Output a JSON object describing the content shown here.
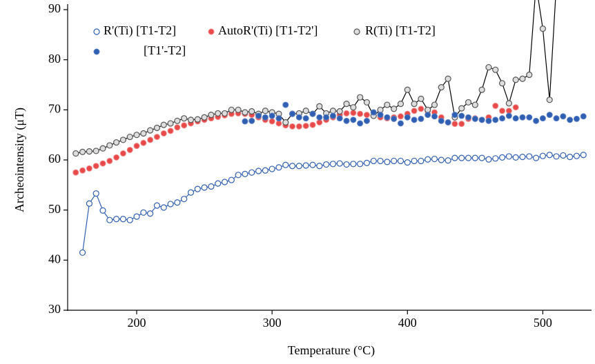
{
  "chart_data": {
    "type": "scatter",
    "x_label": "Temperature (°C)",
    "y_label": "Archeointensity (μT)",
    "xlim": [
      149,
      536
    ],
    "ylim": [
      30,
      90
    ],
    "xticks": [
      200,
      300,
      400,
      500
    ],
    "yticks": [
      30,
      40,
      50,
      60,
      70,
      80,
      90
    ],
    "series": [
      {
        "name": "R'(Ti) [T1-T2]",
        "color": "#2f5fb3",
        "marker": "open",
        "line": true,
        "x": [
          160,
          165,
          170,
          175,
          180,
          185,
          190,
          195,
          200,
          205,
          210,
          215,
          220,
          225,
          230,
          235,
          240,
          245,
          250,
          255,
          260,
          265,
          270,
          275,
          280,
          285,
          290,
          295,
          300,
          305,
          310,
          315,
          320,
          325,
          330,
          335,
          340,
          345,
          350,
          355,
          360,
          365,
          370,
          375,
          380,
          385,
          390,
          395,
          400,
          405,
          410,
          415,
          420,
          425,
          430,
          435,
          440,
          445,
          450,
          455,
          460,
          465,
          470,
          475,
          480,
          485,
          490,
          495,
          500,
          505,
          510,
          515,
          520,
          525,
          530
        ],
        "values": [
          41.5,
          51.3,
          53.3,
          49.9,
          48,
          48.2,
          48.2,
          48,
          48.7,
          49.5,
          49.3,
          50.9,
          50.5,
          51.2,
          51.5,
          52.2,
          53.5,
          54.2,
          54.5,
          54.7,
          55.3,
          55.6,
          56,
          57,
          57.2,
          57.5,
          57.8,
          57.9,
          58.2,
          58.5,
          59,
          58.8,
          58.8,
          58.9,
          59,
          58.8,
          59.1,
          59.2,
          59.3,
          59.1,
          59.2,
          59.2,
          59.4,
          59.8,
          59.8,
          59.6,
          59.8,
          59.8,
          59.5,
          59.8,
          59.8,
          60.1,
          60.2,
          60,
          59.9,
          60.4,
          60.4,
          60.4,
          60.4,
          60.4,
          60.1,
          60.3,
          60.5,
          60.7,
          60.5,
          60.6,
          60.7,
          60.4,
          60.8,
          61,
          60.7,
          60.9,
          60.6,
          60.8,
          61
        ]
      },
      {
        "name": "AutoR'(Ti) [T1-T2']",
        "color": "#e84a4a",
        "marker": "filled",
        "line": false,
        "x": [
          155,
          160,
          165,
          170,
          175,
          180,
          185,
          190,
          195,
          200,
          205,
          210,
          215,
          220,
          225,
          230,
          235,
          240,
          245,
          250,
          255,
          260,
          265,
          270,
          275,
          280,
          285,
          290,
          295,
          300,
          305,
          310,
          315,
          320,
          325,
          330,
          335,
          340,
          345,
          350,
          355,
          360,
          365,
          370,
          375,
          380,
          385,
          390,
          395,
          400,
          405,
          410,
          415,
          420,
          425,
          430,
          435,
          440,
          445,
          450,
          455,
          460,
          465,
          470,
          475,
          480
        ],
        "values": [
          57.5,
          57.9,
          58.3,
          58.8,
          59.3,
          59.8,
          60.5,
          61.3,
          62,
          62.8,
          63.4,
          64,
          64.6,
          65.3,
          65.8,
          66.5,
          66.9,
          67.3,
          67.7,
          68,
          68.3,
          68.6,
          68.9,
          69.2,
          69.3,
          69.2,
          69,
          68.5,
          68,
          67.7,
          67.3,
          66.9,
          66.7,
          66.7,
          66.8,
          67,
          67.5,
          68,
          68.5,
          69,
          69.3,
          69.4,
          69.2,
          69,
          68.8,
          68.5,
          68.3,
          68.5,
          68.7,
          69.2,
          69.8,
          70.2,
          69.7,
          69.5,
          68.5,
          67.5,
          67.2,
          67.2,
          68.2,
          68.3,
          68,
          68.5,
          70.8,
          69.8,
          69.8,
          70.5
        ]
      },
      {
        "name": "R(Ti) [T1-T2]",
        "color": "#555555",
        "marker": "open",
        "line": true,
        "x": [
          155,
          160,
          165,
          170,
          175,
          180,
          185,
          190,
          195,
          200,
          205,
          210,
          215,
          220,
          225,
          230,
          235,
          240,
          245,
          250,
          255,
          260,
          265,
          270,
          275,
          280,
          285,
          290,
          295,
          300,
          305,
          310,
          315,
          320,
          325,
          330,
          335,
          340,
          345,
          350,
          355,
          360,
          365,
          370,
          375,
          380,
          385,
          390,
          395,
          400,
          405,
          410,
          415,
          420,
          425,
          430,
          435,
          440,
          445,
          450,
          455,
          460,
          465,
          470,
          475,
          480,
          485,
          490,
          495,
          500,
          505,
          510
        ],
        "values": [
          61.3,
          61.6,
          61.7,
          61.8,
          62.3,
          62.9,
          63.5,
          64,
          64.6,
          65,
          65.3,
          65.9,
          66.4,
          67,
          67.3,
          67.8,
          68.3,
          68,
          68.1,
          68.5,
          69,
          69.3,
          69.3,
          70,
          70,
          69.5,
          69.7,
          69.2,
          69.8,
          69.5,
          69.2,
          67.5,
          69.2,
          69.3,
          69.8,
          69.2,
          70.7,
          69.3,
          69.8,
          69.7,
          71.2,
          70.5,
          72.5,
          71.5,
          68.8,
          70,
          71,
          70.2,
          71.2,
          74,
          71.2,
          72.2,
          70,
          71,
          74.5,
          76.2,
          68.5,
          70.3,
          71.5,
          71,
          74,
          78.5,
          78,
          75.3,
          71.3,
          76,
          76.2,
          77,
          95,
          86.2,
          72,
          95
        ]
      },
      {
        "name": "[T1'-T2]",
        "color": "#2f5fb3",
        "marker": "filled",
        "line": false,
        "x": [
          280,
          285,
          290,
          295,
          300,
          305,
          310,
          315,
          320,
          325,
          330,
          335,
          340,
          345,
          350,
          355,
          360,
          365,
          370,
          375,
          380,
          385,
          390,
          395,
          400,
          405,
          410,
          415,
          420,
          425,
          430,
          435,
          440,
          445,
          450,
          455,
          460,
          465,
          470,
          475,
          480,
          485,
          490,
          495,
          500,
          505,
          510,
          515,
          520,
          525,
          530
        ],
        "values": [
          67.7,
          67.8,
          68.8,
          68.5,
          68.8,
          68.3,
          71,
          69.2,
          68.5,
          68.3,
          69.2,
          68.5,
          68.5,
          68.8,
          68.3,
          67.8,
          68,
          67.3,
          67.8,
          69.5,
          69,
          68.5,
          68.2,
          67.3,
          68.5,
          68,
          68.2,
          69,
          68.7,
          67.8,
          67.5,
          69,
          68.8,
          68.5,
          68.2,
          68,
          67.8,
          68,
          68.3,
          68.8,
          68.3,
          68.5,
          68.5,
          67.8,
          68.3,
          69,
          68.3,
          68.7,
          68,
          68.2,
          68.7
        ]
      }
    ]
  }
}
